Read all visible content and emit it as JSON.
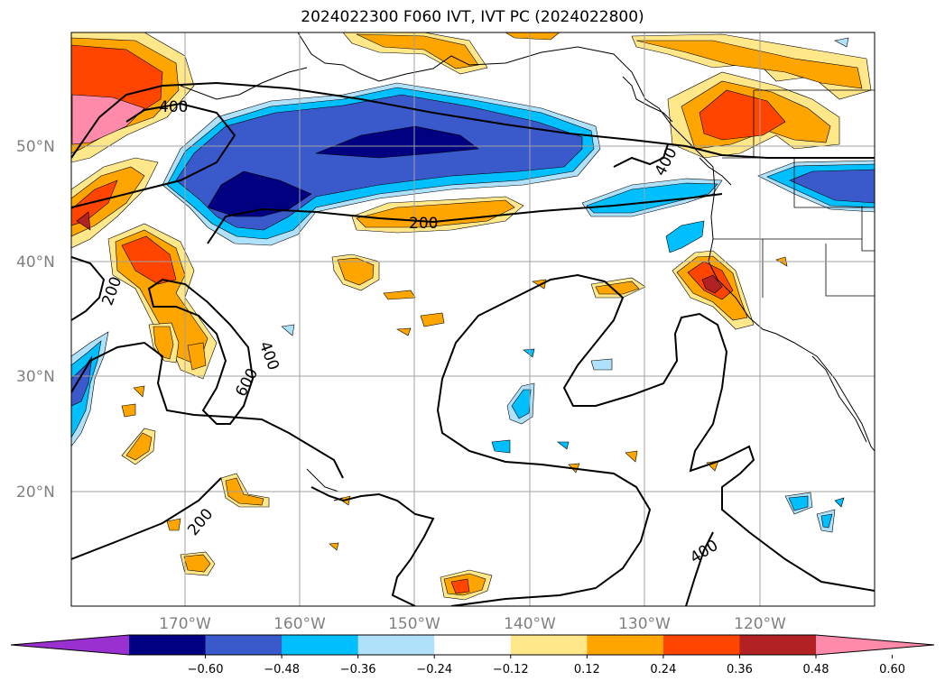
{
  "title": "2024022300 F060 IVT, IVT PC (2024022800)",
  "map": {
    "lat_labels": [
      "50°N",
      "40°N",
      "30°N",
      "20°N"
    ],
    "lon_labels": [
      "170°W",
      "160°W",
      "150°W",
      "140°W",
      "130°W",
      "120°W"
    ],
    "contour_levels": [
      200,
      400,
      600
    ],
    "contour_labels": [
      "400",
      "400",
      "200",
      "200",
      "400",
      "600",
      "200",
      "400"
    ],
    "grid": true
  },
  "colorbar": {
    "ticks": [
      "−0.60",
      "−0.48",
      "−0.36",
      "−0.24",
      "−0.12",
      "0.12",
      "0.24",
      "0.36",
      "0.48",
      "0.60"
    ],
    "colors": [
      "#9b30d0",
      "#000080",
      "#3a5acb",
      "#00bfff",
      "#afe2fa",
      "#ffffff",
      "#ffe78a",
      "#ffa500",
      "#ff4500",
      "#b22222",
      "#ff8aaa"
    ],
    "extend": "both"
  }
}
